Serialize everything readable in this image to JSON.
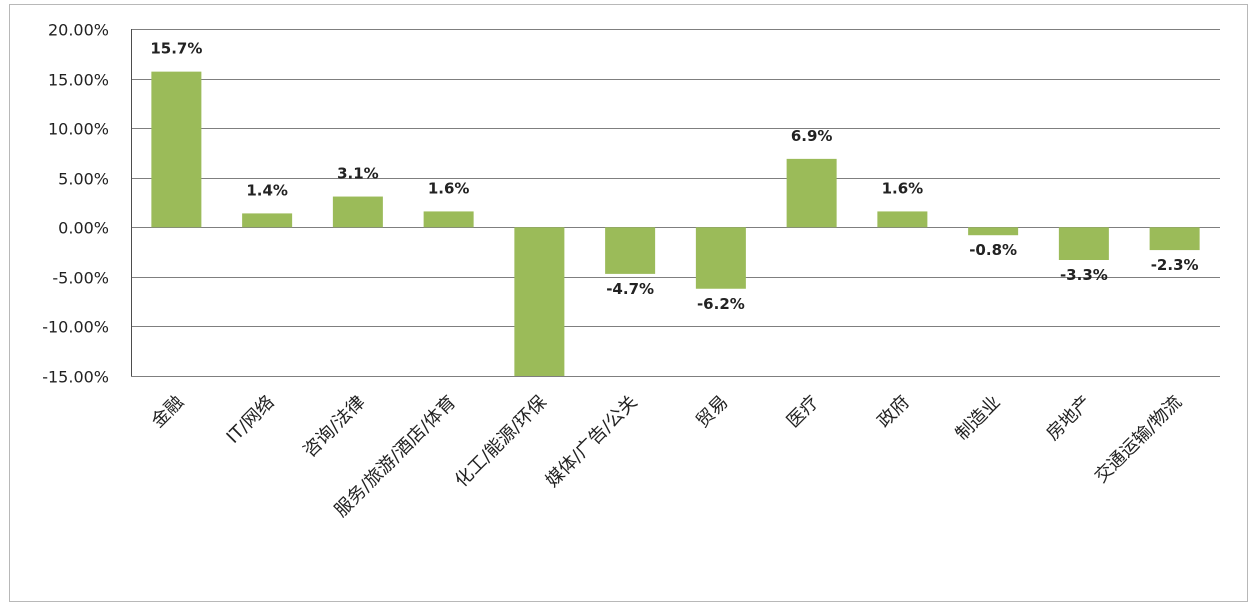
{
  "chart_data": {
    "type": "bar",
    "title": "",
    "xlabel": "",
    "ylabel": "",
    "ylim": [
      -15,
      20
    ],
    "grid": true,
    "legend": "none",
    "bar_color": "#9bbb59",
    "categories": [
      "金融",
      "IT/网络",
      "咨询/法律",
      "服务/旅游/酒店/体育",
      "化工/能源/环保",
      "媒体/广告/公关",
      "贸易",
      "医疗",
      "政府",
      "制造业",
      "房地产",
      "交通运输/物流"
    ],
    "values": [
      15.7,
      1.4,
      3.1,
      1.6,
      -15,
      -4.7,
      -6.2,
      6.9,
      1.6,
      -0.8,
      -3.3,
      -2.3
    ],
    "data_labels": [
      "15.7%",
      "1.4%",
      "3.1%",
      "1.6%",
      "",
      "-4.7%",
      "-6.2%",
      "6.9%",
      "1.6%",
      "-0.8%",
      "-3.3%",
      "-2.3%"
    ],
    "y_ticks": [
      20,
      15,
      10,
      5,
      0,
      -5,
      -10,
      -15
    ],
    "y_tick_labels": [
      "20.00%",
      "15.00%",
      "10.00%",
      "5.00%",
      "0.00%",
      "-5.00%",
      "-10.00%",
      "-15.00%"
    ]
  }
}
